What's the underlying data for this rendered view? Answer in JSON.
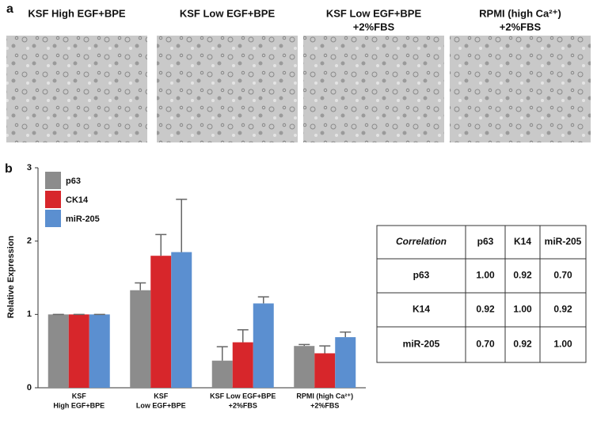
{
  "panel_a": {
    "label": "a",
    "captions": [
      [
        "KSF High EGF+BPE"
      ],
      [
        "KSF Low EGF+BPE"
      ],
      [
        "KSF Low EGF+BPE",
        "+2%FBS"
      ],
      [
        "RPMI (high Ca²⁺)",
        "+2%FBS"
      ]
    ]
  },
  "panel_b": {
    "label": "b"
  },
  "chart_data": {
    "type": "bar",
    "y_label": "Relative Expression",
    "categories": [
      [
        "KSF",
        "High EGF+BPE"
      ],
      [
        "KSF",
        "Low EGF+BPE"
      ],
      [
        "KSF Low EGF+BPE",
        "+2%FBS"
      ],
      [
        "RPMI (high Ca²⁺)",
        "+2%FBS"
      ]
    ],
    "series": [
      {
        "name": "p63",
        "color": "#8c8c8c",
        "values": [
          1.0,
          1.33,
          0.37,
          0.57
        ],
        "errors": [
          0,
          0.1,
          0.19,
          0.02
        ]
      },
      {
        "name": "CK14",
        "color": "#d7262b",
        "values": [
          1.0,
          1.8,
          0.62,
          0.47
        ],
        "errors": [
          0,
          0.29,
          0.17,
          0.1
        ]
      },
      {
        "name": "miR-205",
        "color": "#5b8fd0",
        "values": [
          1.0,
          1.85,
          1.15,
          0.69
        ],
        "errors": [
          0,
          0.72,
          0.09,
          0.07
        ]
      }
    ],
    "ylim": [
      0,
      3
    ],
    "yticks": [
      0,
      1,
      2,
      3
    ],
    "legend": "top-left"
  },
  "table": {
    "header": [
      "Correlation",
      "p63",
      "K14",
      "miR-205"
    ],
    "rows": [
      [
        {
          "text": "p63"
        },
        {
          "text": "1.00"
        },
        {
          "text": "0.92",
          "color": "#d7262b"
        },
        {
          "text": "0.70",
          "color": "#4aa832"
        }
      ],
      [
        {
          "text": "K14"
        },
        {
          "text": "0.92",
          "color": "#d7262b"
        },
        {
          "text": "1.00"
        },
        {
          "text": "0.92"
        }
      ],
      [
        {
          "text": "miR-205"
        },
        {
          "text": "0.70",
          "color": "#4aa832"
        },
        {
          "text": "0.92"
        },
        {
          "text": "1.00"
        }
      ]
    ]
  }
}
